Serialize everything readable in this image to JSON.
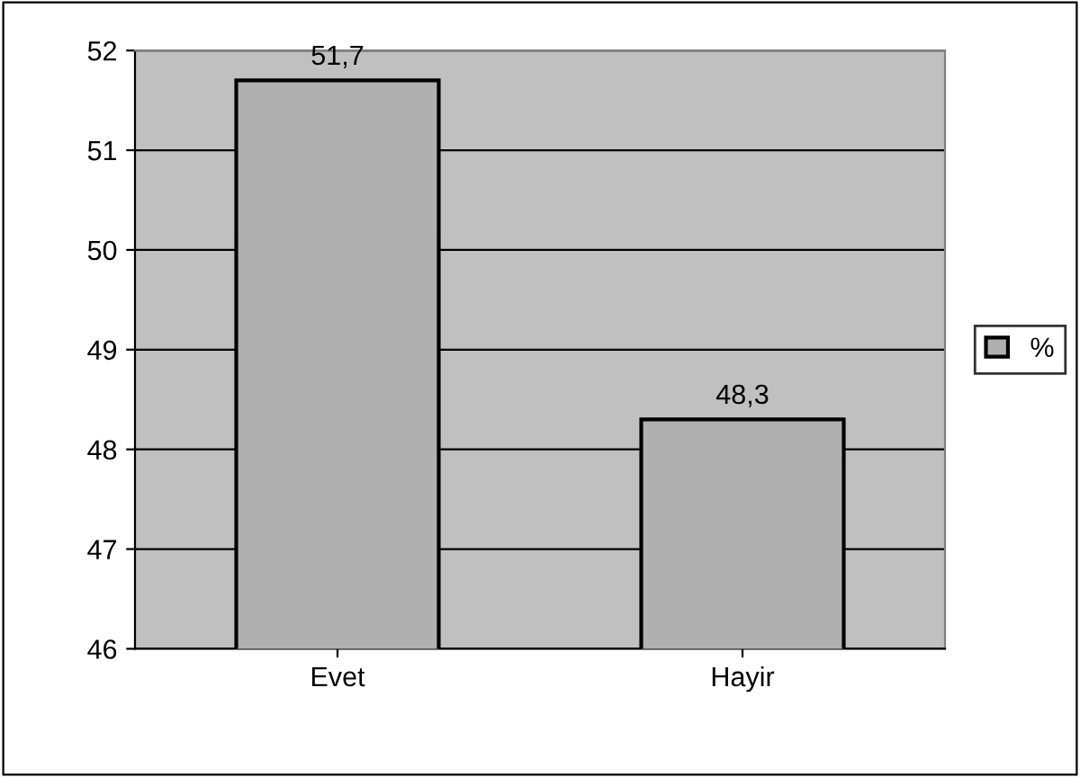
{
  "chart_data": {
    "type": "bar",
    "categories": [
      "Evet",
      "Hayir"
    ],
    "series": [
      {
        "name": "%",
        "color": "#b0b0b0",
        "values": [
          51.7,
          48.3
        ],
        "value_labels": [
          "51,7",
          "48,3"
        ]
      }
    ],
    "ylim": [
      46,
      52
    ],
    "yticks": [
      46,
      47,
      48,
      49,
      50,
      51,
      52
    ],
    "grid": "y",
    "legend": "right"
  }
}
